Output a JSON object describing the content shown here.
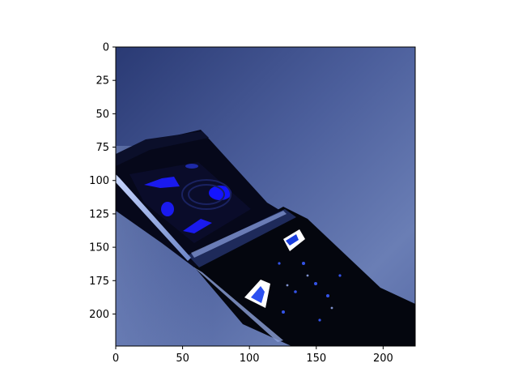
{
  "image": {
    "description_colors": {
      "background_top": "#2e3f7a",
      "background_mid": "#4a5d99",
      "background_light": "#6e82b8",
      "phone_body": "#05070f",
      "phone_highlight": "#9fb4e8",
      "screen_blob": "#1010ff",
      "screen_dark": "#0a0c2a"
    }
  },
  "axes": {
    "x_ticks": [
      "0",
      "50",
      "100",
      "150",
      "200"
    ],
    "y_ticks": [
      "0",
      "25",
      "50",
      "75",
      "100",
      "125",
      "150",
      "175",
      "200"
    ],
    "xlim": [
      0,
      224
    ],
    "ylim": [
      224,
      0
    ]
  }
}
